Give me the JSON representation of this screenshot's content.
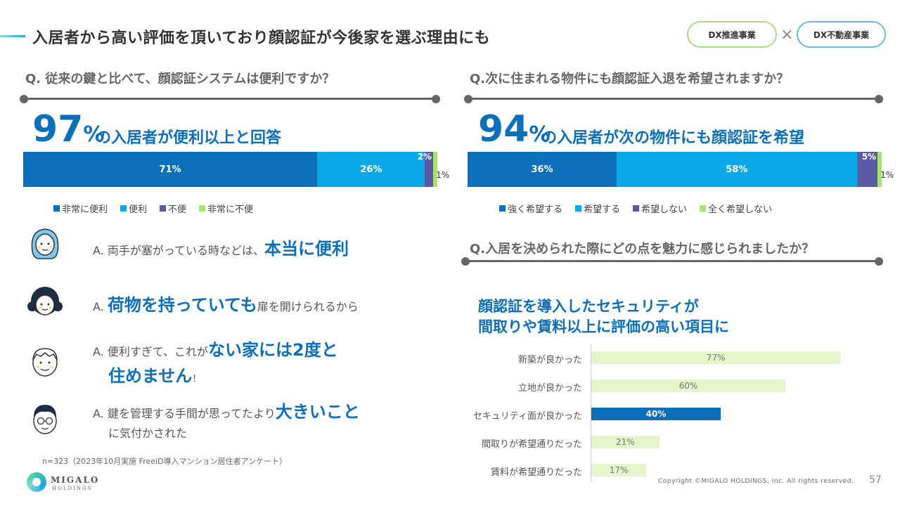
{
  "header": {
    "title": "入居者から高い評価を頂いており顔認証が今後家を選ぶ理由にも",
    "pill_a": "DX推進事業",
    "cross": "×",
    "pill_b": "DX不動産事業"
  },
  "left": {
    "question": "Q. 従来の鍵と比べて、顔認証システムは便利ですか？",
    "big_number": "97",
    "big_pct": "%",
    "big_text": "の入居者が便利以上と回答",
    "bar": [
      {
        "label": "71%",
        "value": 71,
        "color": "#0c6fb9"
      },
      {
        "label": "26%",
        "value": 26,
        "color": "#0aa8e8"
      },
      {
        "label": "2%",
        "value": 2,
        "color": "#5b58a6"
      },
      {
        "label": "1%",
        "value": 1,
        "color": "#a6e866"
      }
    ],
    "legend": [
      "非常に便利",
      "便利",
      "不便",
      "非常に不便"
    ],
    "answers": [
      {
        "prefix": "A. 両手が塞がっている時などは、",
        "em": "本当に便利"
      },
      {
        "prefix": "A. ",
        "em": "荷物を持っていても",
        "suffix": "扉を開けられるから"
      },
      {
        "prefix": "A. 便利すぎて、これが",
        "em": "ない家には2度と",
        "em2": "住めません",
        "suffix": "！"
      },
      {
        "prefix": "A. 鍵を管理する手間が思ってたより",
        "em": "大きいこと",
        "line2": "に気付かされた"
      }
    ],
    "note": "n=323（2023年10月実施 FreeiD導入マンション居住者アンケート）"
  },
  "right": {
    "question": "Q.次に住まれる物件にも顔認証入退を希望されますか？",
    "big_number": "94",
    "big_pct": "%",
    "big_text": "の入居者が次の物件にも顔認証を希望",
    "bar": [
      {
        "label": "36%",
        "value": 36,
        "color": "#0c6fb9"
      },
      {
        "label": "58%",
        "value": 58,
        "color": "#0aa8e8"
      },
      {
        "label": "5%",
        "value": 5,
        "color": "#5b58a6"
      },
      {
        "label": "1%",
        "value": 1,
        "color": "#a6e866"
      }
    ],
    "legend": [
      "強く希望する",
      "希望する",
      "希望しない",
      "全く希望しない"
    ],
    "question2": "Q.入居を決められた際にどの点を魅力に感じられましたか？",
    "subhead_1": "顔認証を導入したセキュリティが",
    "subhead_2": "間取りや賃料以上に評価の高い項目に"
  },
  "chart_data": {
    "type": "bar",
    "categories": [
      "新築が良かった",
      "立地が良かった",
      "セキュリティ面が良かった",
      "間取りが希望通りだった",
      "賃料が希望通りだった"
    ],
    "values": [
      77,
      60,
      40,
      21,
      17
    ],
    "labels": [
      "77%",
      "60%",
      "40%",
      "21%",
      "17%"
    ],
    "highlight_index": 2,
    "colors": {
      "default": "#e3f5c9",
      "highlight": "#0c6fb9"
    },
    "xlim": [
      0,
      100
    ]
  },
  "footer": {
    "logo_text": "MIGALO",
    "logo_sub": "HOLDINGS",
    "copyright": "Copyright ©MIGALO HOLDINGS, Inc. All rights reserved.",
    "page": "57"
  }
}
